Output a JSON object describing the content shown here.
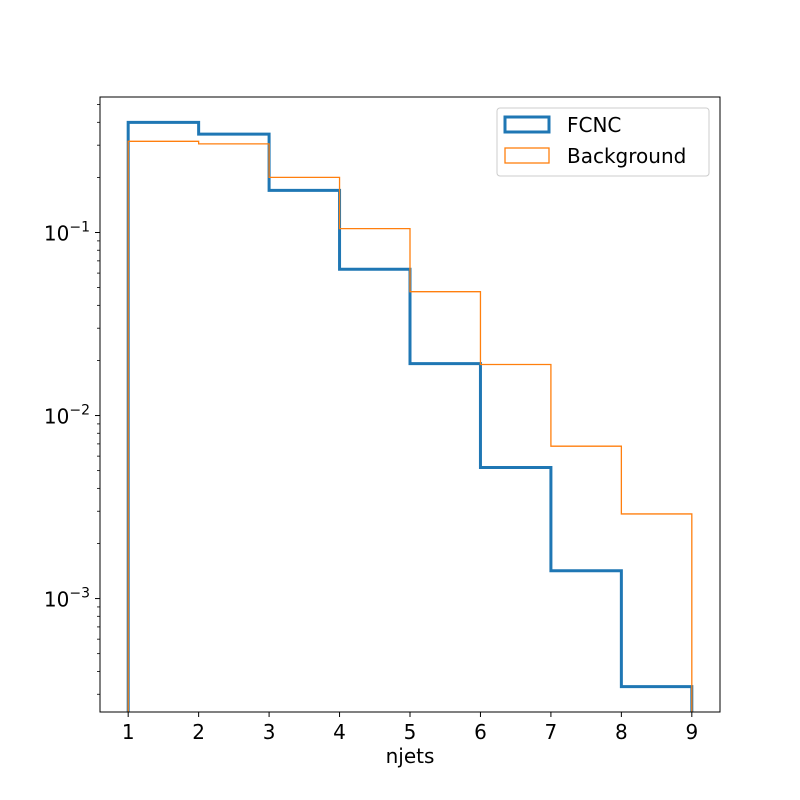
{
  "chart_data": {
    "type": "histogram-step",
    "title": "",
    "xlabel": "njets",
    "ylabel": "",
    "xlim": [
      0.6,
      9.4
    ],
    "ylim": [
      0.00024,
      0.55
    ],
    "yscale": "log",
    "grid": false,
    "legend_position": "top-right",
    "bin_edges": [
      1,
      2,
      3,
      4,
      5,
      6,
      7,
      8,
      9
    ],
    "x_ticks": [
      "1",
      "2",
      "3",
      "4",
      "5",
      "6",
      "7",
      "8",
      "9"
    ],
    "y_ticks": [
      {
        "value": 0.1,
        "base": "10",
        "exp": "−1"
      },
      {
        "value": 0.01,
        "base": "10",
        "exp": "−2"
      },
      {
        "value": 0.001,
        "base": "10",
        "exp": "−3"
      }
    ],
    "series": [
      {
        "name": "FCNC",
        "color": "#1f77b4",
        "linewidth": 3,
        "values": [
          0.4,
          0.345,
          0.17,
          0.063,
          0.0192,
          0.0052,
          0.00142,
          0.00033
        ]
      },
      {
        "name": "Background",
        "color": "#ff7f0e",
        "linewidth": 1.3,
        "values": [
          0.315,
          0.305,
          0.2,
          0.105,
          0.0475,
          0.019,
          0.0068,
          0.0029
        ]
      }
    ]
  }
}
